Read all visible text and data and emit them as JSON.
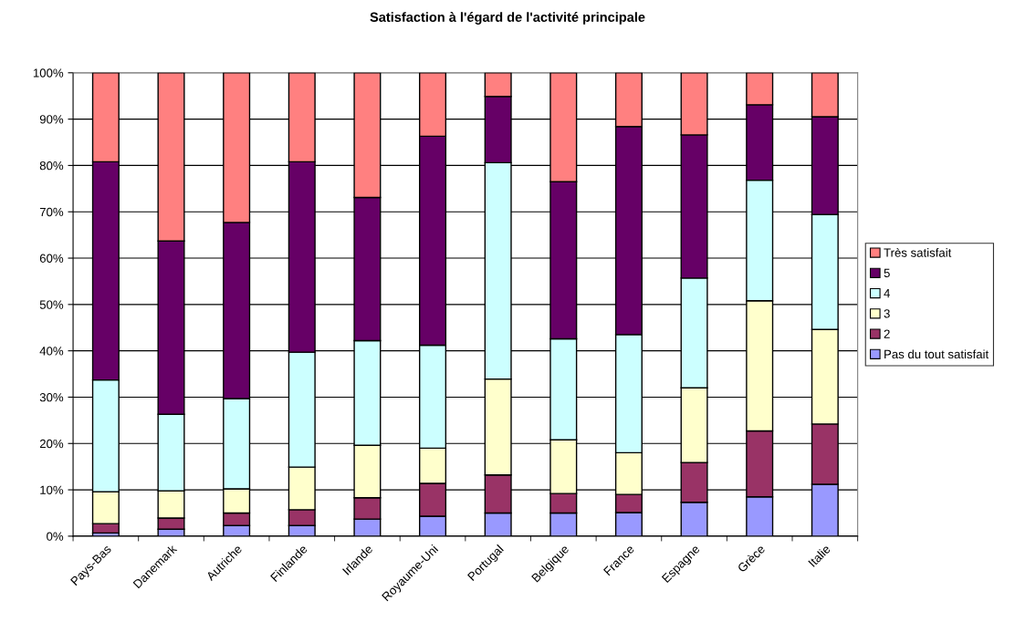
{
  "chart_data": {
    "type": "bar",
    "stacked": true,
    "title": "Satisfaction à l'égard de l'activité principale",
    "categories": [
      "Pays-Bas",
      "Danemark",
      "Autriche",
      "Finlande",
      "Irlande",
      "Royaume-Uni",
      "Portugal",
      "Belgique",
      "France",
      "Espagne",
      "Grèce",
      "Italie"
    ],
    "series": [
      {
        "name": "Pas du tout satisfait",
        "color": "#9999ff",
        "values": [
          0.7,
          1.5,
          2.3,
          2.3,
          3.7,
          4.3,
          5.0,
          5.0,
          5.1,
          7.3,
          8.5,
          11.2
        ]
      },
      {
        "name": "2",
        "color": "#993366",
        "values": [
          2.0,
          2.4,
          2.7,
          3.4,
          4.6,
          7.1,
          8.2,
          4.2,
          3.9,
          8.6,
          14.2,
          13.0
        ]
      },
      {
        "name": "3",
        "color": "#ffffcc",
        "values": [
          6.9,
          5.9,
          5.2,
          9.2,
          11.3,
          7.6,
          20.7,
          11.6,
          9.0,
          16.1,
          28.1,
          20.4
        ]
      },
      {
        "name": "4",
        "color": "#ccffff",
        "values": [
          24.1,
          16.5,
          19.5,
          24.8,
          22.6,
          22.2,
          46.7,
          21.8,
          25.5,
          23.7,
          26.0,
          24.8
        ]
      },
      {
        "name": "5",
        "color": "#660066",
        "values": [
          47.1,
          37.4,
          38.0,
          41.1,
          30.9,
          45.1,
          14.3,
          33.9,
          44.9,
          30.9,
          16.3,
          21.1
        ]
      },
      {
        "name": "Très satisfait",
        "color": "#ff8080",
        "values": [
          19.2,
          36.3,
          32.3,
          19.2,
          26.9,
          13.7,
          5.1,
          23.5,
          11.6,
          13.4,
          6.9,
          9.5
        ]
      }
    ],
    "ylim": [
      0,
      100
    ],
    "yticks": [
      {
        "value": 0,
        "label": "0%"
      },
      {
        "value": 10,
        "label": "10%"
      },
      {
        "value": 20,
        "label": "20%"
      },
      {
        "value": 30,
        "label": "30%"
      },
      {
        "value": 40,
        "label": "40%"
      },
      {
        "value": 50,
        "label": "50%"
      },
      {
        "value": 60,
        "label": "60%"
      },
      {
        "value": 70,
        "label": "70%"
      },
      {
        "value": 80,
        "label": "80%"
      },
      {
        "value": 90,
        "label": "90%"
      },
      {
        "value": 100,
        "label": "100%"
      }
    ],
    "grid": "y",
    "legend": "right"
  }
}
